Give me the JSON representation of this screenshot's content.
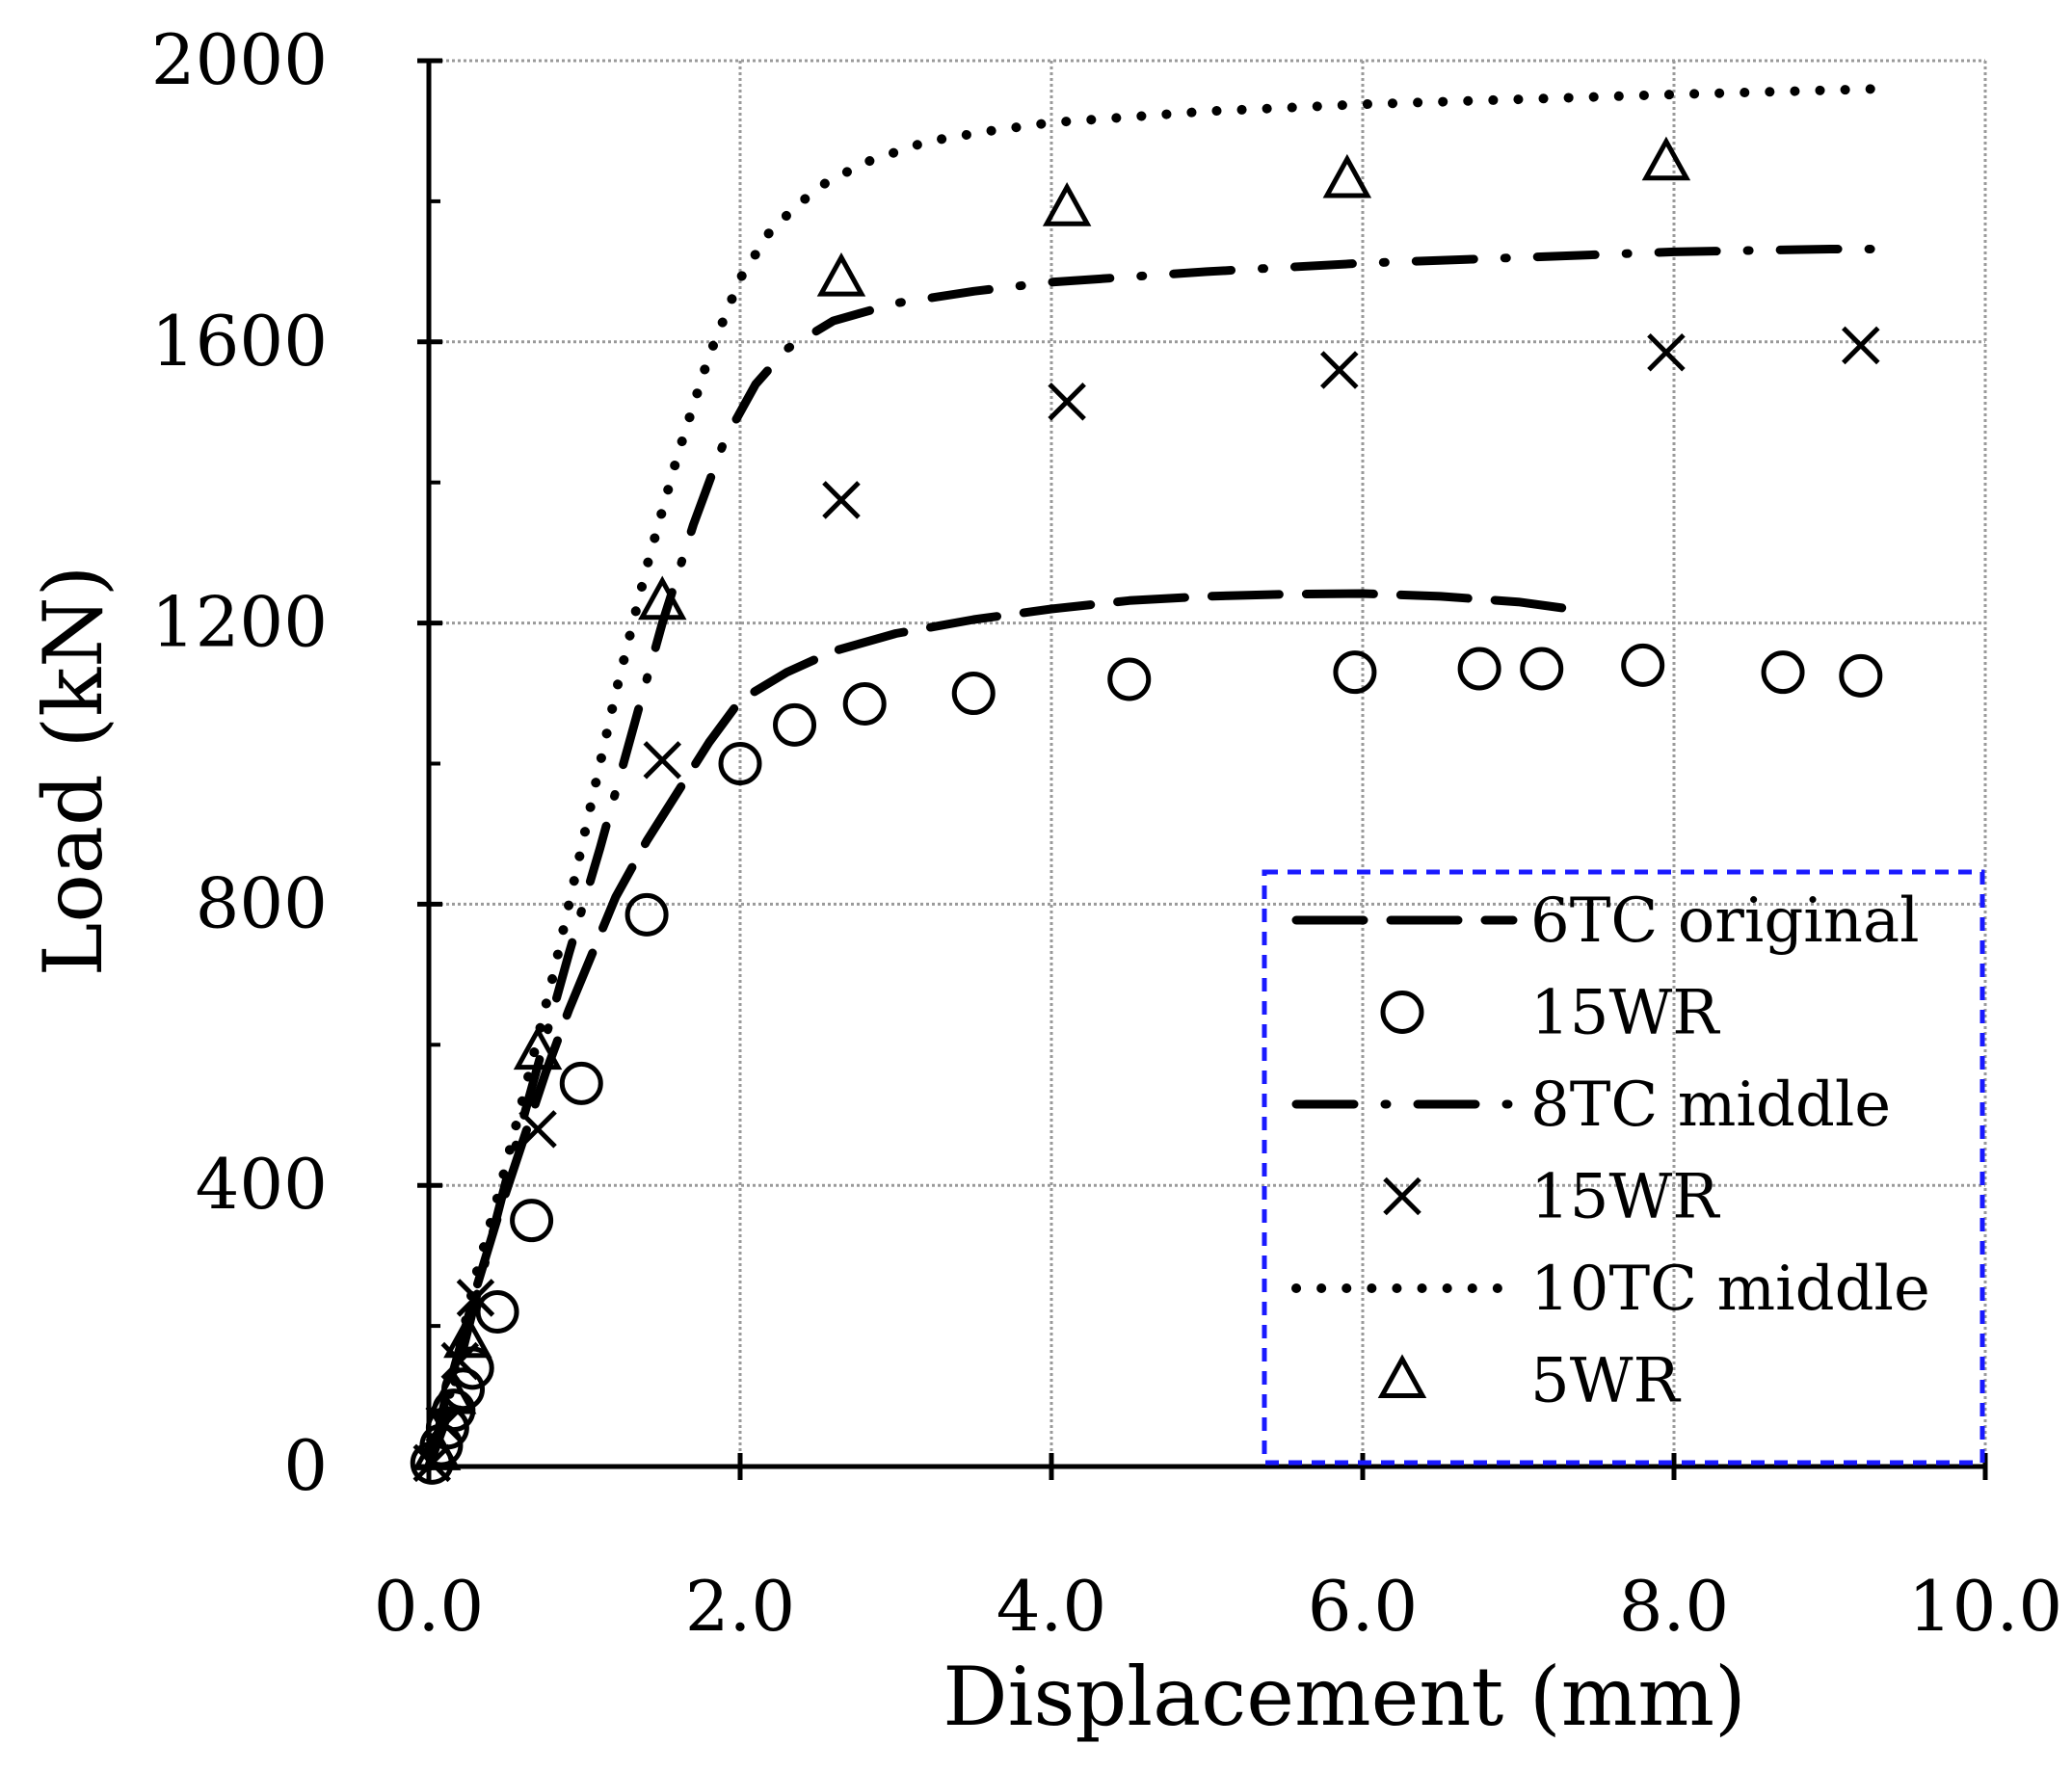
{
  "chart_data": {
    "type": "line",
    "title": "",
    "xlabel": "Displacement (mm)",
    "ylabel": "Load (kN)",
    "xlim": [
      0,
      10
    ],
    "ylim": [
      0,
      2000
    ],
    "xticks": [
      0,
      2,
      4,
      6,
      8,
      10
    ],
    "xtick_labels": [
      "0.0",
      "2.0",
      "4.0",
      "6.0",
      "8.0",
      "10.0"
    ],
    "yticks": [
      0,
      400,
      800,
      1200,
      1600,
      2000
    ],
    "ytick_labels": [
      "0",
      "400",
      "800",
      "1200",
      "1600",
      "2000"
    ],
    "minor_yticks": [
      200,
      600,
      1000,
      1400,
      1800
    ],
    "grid": true,
    "legend_position": "bottom-right",
    "series": [
      {
        "name": "6TC original",
        "style": "long-dash",
        "color": "#000000",
        "x": [
          0,
          0.05,
          0.1,
          0.2,
          0.3,
          0.45,
          0.6,
          0.75,
          0.9,
          1.05,
          1.2,
          1.4,
          1.6,
          1.8,
          2.0,
          2.3,
          2.6,
          3.0,
          3.5,
          4.0,
          4.5,
          5.0,
          5.5,
          6.0,
          6.5,
          7.0,
          7.4
        ],
        "values": [
          0,
          40,
          90,
          170,
          250,
          360,
          460,
          560,
          650,
          730,
          810,
          890,
          960,
          1030,
          1090,
          1130,
          1160,
          1185,
          1205,
          1220,
          1232,
          1238,
          1241,
          1242,
          1238,
          1230,
          1218
        ]
      },
      {
        "name": "15WR",
        "style": "marker-circle",
        "color": "#000000",
        "x": [
          0.02,
          0.08,
          0.12,
          0.16,
          0.22,
          0.28,
          0.44,
          0.66,
          0.98,
          1.4,
          2.0,
          2.35,
          2.8,
          3.5,
          4.5,
          5.95,
          6.75,
          7.15,
          7.8,
          8.7,
          9.2
        ],
        "values": [
          5,
          30,
          55,
          80,
          110,
          140,
          220,
          350,
          545,
          785,
          1000,
          1055,
          1085,
          1100,
          1120,
          1130,
          1135,
          1135,
          1140,
          1130,
          1125
        ]
      },
      {
        "name": "8TC middle",
        "style": "dash-dot",
        "color": "#000000",
        "x": [
          0,
          0.1,
          0.2,
          0.35,
          0.5,
          0.7,
          0.9,
          1.1,
          1.3,
          1.5,
          1.7,
          1.9,
          2.1,
          2.3,
          2.6,
          3.0,
          3.5,
          4.0,
          5.0,
          6.0,
          7.0,
          8.0,
          9.0,
          9.4
        ],
        "values": [
          0,
          60,
          150,
          280,
          410,
          570,
          730,
          880,
          1040,
          1200,
          1340,
          1460,
          1540,
          1590,
          1630,
          1655,
          1672,
          1685,
          1700,
          1712,
          1720,
          1728,
          1732,
          1732
        ]
      },
      {
        "name": "15WR",
        "style": "marker-x",
        "color": "#000000",
        "x": [
          0.02,
          0.1,
          0.2,
          0.3,
          0.7,
          1.5,
          2.65,
          4.1,
          5.85,
          7.95,
          9.2
        ],
        "values": [
          5,
          60,
          150,
          240,
          480,
          1005,
          1375,
          1515,
          1560,
          1585,
          1595
        ]
      },
      {
        "name": "10TC middle",
        "style": "dotted",
        "color": "#000000",
        "x": [
          0,
          0.1,
          0.2,
          0.3,
          0.45,
          0.6,
          0.8,
          1.0,
          1.2,
          1.4,
          1.6,
          1.8,
          2.0,
          2.2,
          2.5,
          2.8,
          3.2,
          3.6,
          4.0,
          4.5,
          5.0,
          6.0,
          7.0,
          8.0,
          9.0,
          9.3
        ],
        "values": [
          0,
          70,
          170,
          270,
          390,
          520,
          700,
          900,
          1100,
          1280,
          1440,
          1580,
          1690,
          1760,
          1820,
          1855,
          1885,
          1900,
          1912,
          1920,
          1928,
          1938,
          1945,
          1952,
          1958,
          1960
        ]
      },
      {
        "name": "5WR",
        "style": "marker-triangle",
        "color": "#000000",
        "x": [
          0.05,
          0.15,
          0.25,
          0.7,
          1.5,
          2.65,
          4.1,
          5.9,
          7.95
        ],
        "values": [
          20,
          100,
          180,
          590,
          1230,
          1690,
          1790,
          1830,
          1855
        ]
      }
    ]
  },
  "colors": {
    "legend_border": "#1a1aff",
    "axis": "#000000",
    "grid": "#9a9a9a"
  }
}
